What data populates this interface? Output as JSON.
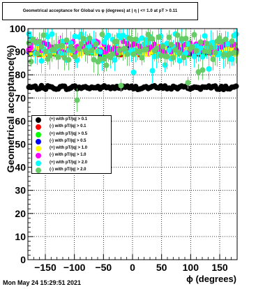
{
  "title": "Geometrical acceptance for Global vs φ (degrees) at | η | <= 1.0 at pT > 0.11",
  "timestamp": "Mon May 24 15:29:51 2021",
  "chart_data": {
    "type": "scatter",
    "title": "Geometrical acceptance for Global vs φ (degrees) at | η | <= 1.0 at pT > 0.11",
    "xlabel": "ϕ (degrees)",
    "ylabel": "Geometrical acceptance(%)",
    "xlim": [
      -180,
      180
    ],
    "ylim": [
      0,
      100
    ],
    "x_ticks": [
      -150,
      -100,
      -50,
      0,
      50,
      100,
      150
    ],
    "y_ticks": [
      0,
      10,
      20,
      30,
      40,
      50,
      60,
      70,
      80,
      90,
      100
    ],
    "grid": true,
    "legend_position": "left-middle",
    "n_bins": 100,
    "series": [
      {
        "name": "(+) with pT/|q| > 0.1",
        "color": "#000000",
        "mean": 74.5,
        "spread": 0.8,
        "err": 0.8
      },
      {
        "name": "(-) with pT/|q| > 0.1",
        "color": "#ff0000",
        "mean": 89.5,
        "spread": 0.8,
        "err": 1.0
      },
      {
        "name": "(+) with pT/|q| > 0.5",
        "color": "#00ff00",
        "mean": 90.0,
        "spread": 1.2,
        "err": 1.2
      },
      {
        "name": "(-) with pT/|q| > 0.5",
        "color": "#0000ff",
        "mean": 90.5,
        "spread": 1.2,
        "err": 1.2
      },
      {
        "name": "(+) with pT/|q| > 1.0",
        "color": "#ffff00",
        "mean": 90.5,
        "spread": 1.8,
        "err": 1.5
      },
      {
        "name": "(-) with pT/|q| > 1.0",
        "color": "#ff00ff",
        "mean": 92.0,
        "spread": 2.5,
        "err": 2.0
      },
      {
        "name": "(+) with pT/|q| > 2.0",
        "color": "#00ffff",
        "mean": 92.0,
        "spread": 6.0,
        "err": 4.0
      },
      {
        "name": "(-) with pT/|q| > 2.0",
        "color": "#66cc66",
        "mean": 91.5,
        "spread": 6.0,
        "err": 4.0
      }
    ]
  }
}
